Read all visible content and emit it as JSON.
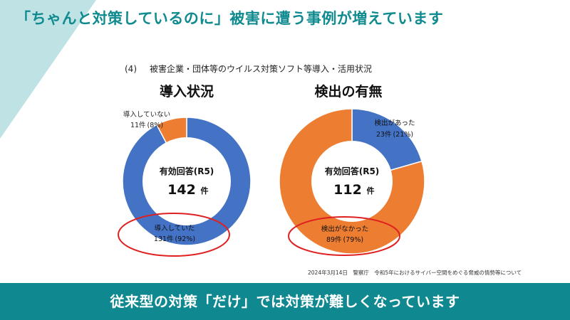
{
  "header": {
    "title": "「ちゃんと対策しているのに」被害に遭う事例が増えています"
  },
  "figure": {
    "number": "(4)",
    "heading": "被害企業・団体等のウイルス対策ソフト等導入・活用状況"
  },
  "chart_data": [
    {
      "type": "pie",
      "title": "導入状況",
      "center_label": "有効回答(R5)",
      "total": "142",
      "total_unit": "件",
      "slices": [
        {
          "label": "導入していた",
          "value": 131,
          "count_text": "131件",
          "pct_text": "(92%)",
          "color": "#4472c4"
        },
        {
          "label": "導入していない",
          "value": 11,
          "count_text": "11件",
          "pct_text": "(8%)",
          "color": "#ed7d31"
        }
      ]
    },
    {
      "type": "pie",
      "title": "検出の有無",
      "center_label": "有効回答(R5)",
      "total": "112",
      "total_unit": "件",
      "slices": [
        {
          "label": "検出があった",
          "value": 23,
          "count_text": "23件",
          "pct_text": "(21%)",
          "color": "#4472c4"
        },
        {
          "label": "検出がなかった",
          "value": 89,
          "count_text": "89件",
          "pct_text": "(79%)",
          "color": "#ed7d31"
        }
      ]
    }
  ],
  "highlight_color": "#e02020",
  "source": "2024年3月14日　警察庁　令和5年におけるサイバー空間をめぐる脅威の情勢等について",
  "banner": {
    "text": "従来型の対策「だけ」では対策が難しくなっています"
  }
}
